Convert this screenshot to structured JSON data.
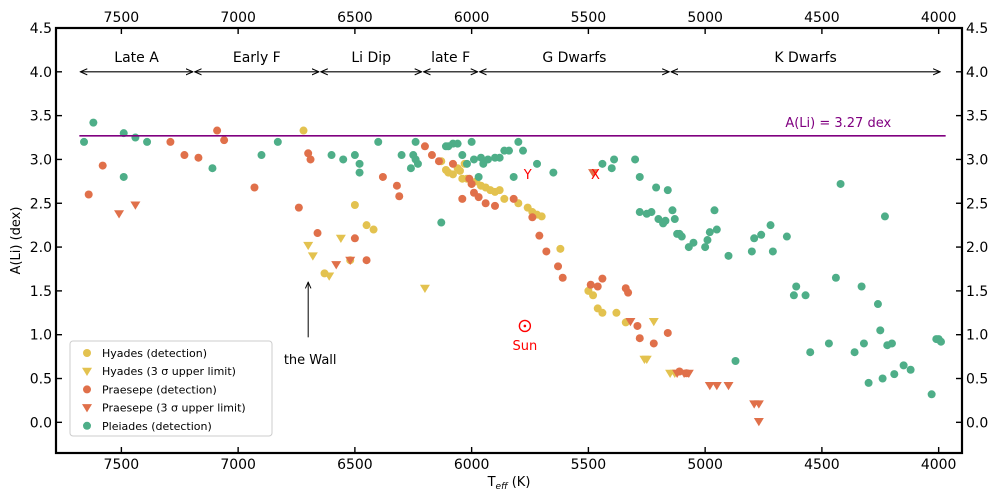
{
  "chart_data": {
    "type": "scatter",
    "xlabel_main": "T",
    "xlabel_sub": "eff",
    "xlabel_unit": " (K)",
    "ylabel": "A(Li) (dex)",
    "xlim": [
      7780,
      3900
    ],
    "ylim": [
      -0.35,
      4.5
    ],
    "xticks": [
      7500,
      7000,
      6500,
      6000,
      5500,
      5000,
      4500,
      4000
    ],
    "xtick_labels": [
      "7500",
      "7000",
      "6500",
      "6000",
      "5500",
      "5000",
      "4500",
      "4000"
    ],
    "yticks": [
      0.0,
      0.5,
      1.0,
      1.5,
      2.0,
      2.5,
      3.0,
      3.5,
      4.0,
      4.5
    ],
    "ytick_labels": [
      "0.0",
      "0.5",
      "1.0",
      "1.5",
      "2.0",
      "2.5",
      "3.0",
      "3.5",
      "4.0",
      "4.5"
    ],
    "colors": {
      "hyades": "#e3c24f",
      "praesepe": "#e0704a",
      "pleiades": "#4eae88",
      "li_line": "#800080",
      "marker": "#ff0000"
    },
    "reference_line": {
      "y": 3.27,
      "x_range": [
        7680,
        3970
      ],
      "label": "A(Li) = 3.27 dex"
    },
    "regions": [
      {
        "label": "Late A",
        "from": 7680,
        "to": 7190
      },
      {
        "label": "Early F",
        "from": 7190,
        "to": 6650
      },
      {
        "label": "Li Dip",
        "from": 6650,
        "to": 6210
      },
      {
        "label": "late F",
        "from": 6210,
        "to": 5970
      },
      {
        "label": "G Dwarfs",
        "from": 5970,
        "to": 5150
      },
      {
        "label": "K Dwarfs",
        "from": 5150,
        "to": 3990
      }
    ],
    "annotations": [
      {
        "id": "wall",
        "label": "the Wall",
        "x": 6700,
        "y_text": 0.7,
        "y_arrow_end": 1.6
      },
      {
        "id": "sun",
        "label": "Sun",
        "x": 5772,
        "y": 1.1
      },
      {
        "id": "y-marker",
        "label": "Y",
        "x": 5760,
        "y": 2.87
      },
      {
        "id": "x-marker",
        "label": "X",
        "x": 5470,
        "y": 2.87
      }
    ],
    "series": [
      {
        "name": "Hyades (detection)",
        "marker": "circle",
        "color": "#e3c24f",
        "x": [
          6720,
          6630,
          6520,
          6500,
          6450,
          6420,
          6130,
          6110,
          6100,
          6080,
          6060,
          6050,
          6040,
          6030,
          6020,
          6000,
          5980,
          5960,
          5940,
          5920,
          5900,
          5880,
          5860,
          5800,
          5760,
          5740,
          5720,
          5700,
          5620,
          5500,
          5480,
          5460,
          5440,
          5380,
          5340
        ],
        "y": [
          3.33,
          1.7,
          1.85,
          2.48,
          2.25,
          2.2,
          2.98,
          2.88,
          2.85,
          2.83,
          2.9,
          2.87,
          2.78,
          2.95,
          2.78,
          2.72,
          2.75,
          2.7,
          2.68,
          2.65,
          2.63,
          2.65,
          2.55,
          2.5,
          2.45,
          2.4,
          2.37,
          2.35,
          1.98,
          1.5,
          1.45,
          1.3,
          1.25,
          1.25,
          1.14
        ]
      },
      {
        "name": "Hyades (3 σ upper limit)",
        "marker": "triangle-down",
        "color": "#e3c24f",
        "x": [
          6700,
          6680,
          6610,
          6560,
          6200,
          5260,
          5250,
          5220,
          5150,
          5130
        ],
        "y": [
          2.02,
          1.9,
          1.67,
          2.1,
          1.53,
          0.72,
          0.72,
          1.15,
          0.56,
          0.56
        ]
      },
      {
        "name": "Praesepe (detection)",
        "marker": "circle",
        "color": "#e0704a",
        "x": [
          7640,
          7580,
          7290,
          7230,
          7170,
          7090,
          7060,
          6930,
          6740,
          6700,
          6690,
          6660,
          6500,
          6450,
          6380,
          6320,
          6310,
          6200,
          6170,
          6140,
          6080,
          6040,
          6010,
          6000,
          5990,
          5970,
          5940,
          5900,
          5820,
          5740,
          5710,
          5680,
          5630,
          5610,
          5490,
          5460,
          5440,
          5340,
          5330,
          5290,
          5280,
          5220,
          5160,
          5110,
          5080
        ],
        "y": [
          2.6,
          2.93,
          3.2,
          3.05,
          3.02,
          3.33,
          3.22,
          2.68,
          2.45,
          3.07,
          3.0,
          2.16,
          2.1,
          1.85,
          2.8,
          2.7,
          2.58,
          3.15,
          3.05,
          2.98,
          2.95,
          2.55,
          2.78,
          2.72,
          2.62,
          2.57,
          2.5,
          2.47,
          2.55,
          2.34,
          2.13,
          1.95,
          1.78,
          1.65,
          1.57,
          1.55,
          1.64,
          1.53,
          1.48,
          1.1,
          0.96,
          0.9,
          1.02,
          0.58,
          0.56
        ]
      },
      {
        "name": "Praesepe (3 σ upper limit)",
        "marker": "triangle-down",
        "color": "#e0704a",
        "x": [
          7510,
          7440,
          6580,
          6520,
          5480,
          5320,
          5120,
          5090,
          5070,
          4980,
          4950,
          4900,
          4790,
          4770,
          4770
        ],
        "y": [
          2.38,
          2.48,
          1.8,
          1.85,
          2.85,
          1.15,
          0.56,
          0.56,
          0.56,
          0.42,
          0.42,
          0.42,
          0.21,
          0.21,
          0.01
        ]
      },
      {
        "name": "Pleiades (detection)",
        "marker": "circle",
        "color": "#4eae88",
        "x": [
          7660,
          7620,
          7490,
          7490,
          7440,
          7390,
          7110,
          6900,
          6830,
          6600,
          6550,
          6500,
          6480,
          6480,
          6400,
          6300,
          6260,
          6250,
          6240,
          6240,
          6230,
          6130,
          6110,
          6100,
          6080,
          6060,
          6040,
          6020,
          6000,
          5990,
          5970,
          5960,
          5950,
          5930,
          5900,
          5880,
          5860,
          5840,
          5820,
          5800,
          5780,
          5720,
          5650,
          5440,
          5400,
          5390,
          5300,
          5280,
          5280,
          5250,
          5230,
          5210,
          5200,
          5180,
          5170,
          5160,
          5140,
          5130,
          5120,
          5110,
          5100,
          5070,
          5050,
          5000,
          4990,
          4980,
          4960,
          4950,
          4900,
          4870,
          4800,
          4790,
          4760,
          4720,
          4710,
          4650,
          4620,
          4610,
          4570,
          4550,
          4470,
          4440,
          4420,
          4360,
          4330,
          4320,
          4300,
          4260,
          4250,
          4240,
          4230,
          4220,
          4200,
          4190,
          4150,
          4120,
          4030,
          4010,
          4000,
          3990
        ],
        "y": [
          3.2,
          3.42,
          3.3,
          2.8,
          3.25,
          3.2,
          2.9,
          3.05,
          3.2,
          3.05,
          3.0,
          3.05,
          2.95,
          2.85,
          3.2,
          3.05,
          2.9,
          3.05,
          3.2,
          3.0,
          2.95,
          2.28,
          3.15,
          3.15,
          3.18,
          3.18,
          3.05,
          2.95,
          3.2,
          3.0,
          2.8,
          3.02,
          2.95,
          3.0,
          3.02,
          3.02,
          3.1,
          3.1,
          2.8,
          3.2,
          3.1,
          2.95,
          2.85,
          2.95,
          2.9,
          3.0,
          3.0,
          2.8,
          2.4,
          2.38,
          2.4,
          2.68,
          2.32,
          2.27,
          2.3,
          2.65,
          2.42,
          2.32,
          2.15,
          2.15,
          2.12,
          2.0,
          2.05,
          2.0,
          2.08,
          2.17,
          2.42,
          2.2,
          1.9,
          0.7,
          1.95,
          2.1,
          2.14,
          2.25,
          1.95,
          2.12,
          1.45,
          1.55,
          1.45,
          0.8,
          0.9,
          1.65,
          2.72,
          0.8,
          1.55,
          0.9,
          0.45,
          1.35,
          1.05,
          0.5,
          2.35,
          0.88,
          0.9,
          0.55,
          0.65,
          0.6,
          0.32,
          0.95,
          0.95,
          0.92
        ]
      }
    ]
  },
  "legend": {
    "position": "lower-left",
    "items": [
      {
        "label": "Hyades (detection)",
        "marker": "circle",
        "color": "#e3c24f"
      },
      {
        "label": "Hyades (3 σ upper limit)",
        "marker": "triangle-down",
        "color": "#e3c24f"
      },
      {
        "label": "Praesepe (detection)",
        "marker": "circle",
        "color": "#e0704a"
      },
      {
        "label": "Praesepe (3 σ upper limit)",
        "marker": "triangle-down",
        "color": "#e0704a"
      },
      {
        "label": "Pleiades (detection)",
        "marker": "circle",
        "color": "#4eae88"
      }
    ]
  }
}
